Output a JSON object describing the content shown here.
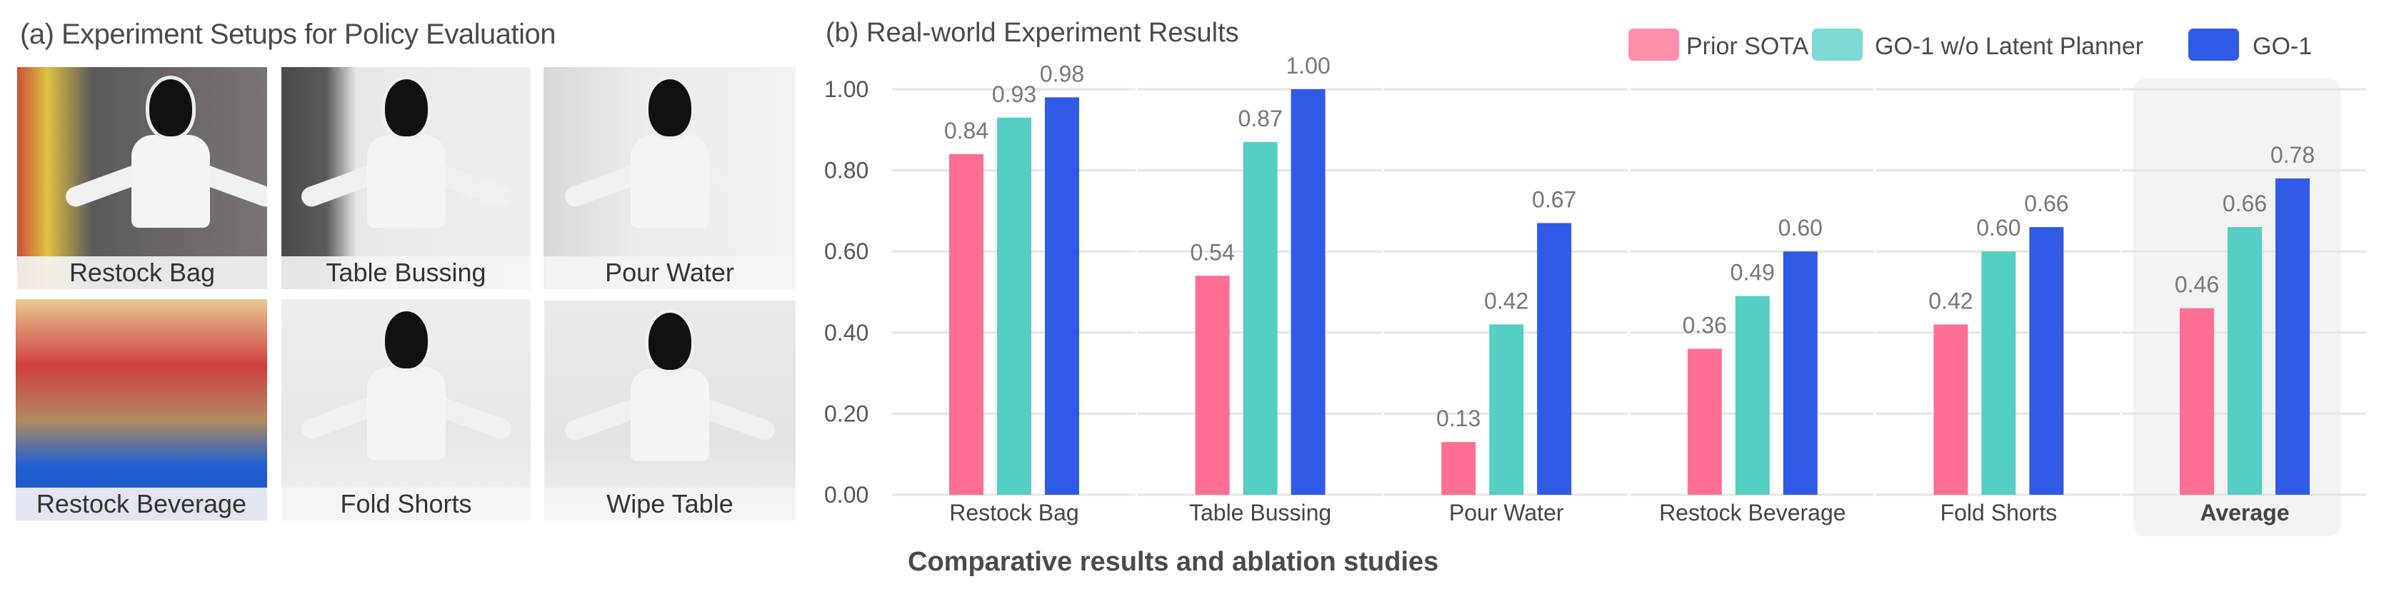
{
  "panel_a": {
    "title": "(a) Experiment Setups for Policy Evaluation",
    "photos": [
      {
        "label": "Restock Bag"
      },
      {
        "label": "Table Bussing"
      },
      {
        "label": "Pour Water"
      },
      {
        "label": "Restock Beverage"
      },
      {
        "label": "Fold Shorts"
      },
      {
        "label": "Wipe Table"
      }
    ]
  },
  "caption": "Comparative results and ablation studies",
  "chart_data": {
    "type": "bar",
    "title": "(b) Real-world Experiment Results",
    "categories": [
      "Restock Bag",
      "Table Bussing",
      "Pour Water",
      "Restock Beverage",
      "Fold Shorts",
      "Average"
    ],
    "highlighted_category": "Average",
    "series": [
      {
        "name": "Prior SOTA",
        "color": "#ff6f93",
        "legend_color": "#ff8fab",
        "values": [
          0.84,
          0.54,
          0.13,
          0.36,
          0.42,
          0.46
        ]
      },
      {
        "name": "GO-1 w/o Latent Planner",
        "color": "#55cec4",
        "legend_color": "#7dd9d3",
        "values": [
          0.93,
          0.87,
          0.42,
          0.49,
          0.6,
          0.66
        ]
      },
      {
        "name": "GO-1",
        "color": "#2f5be6",
        "legend_color": "#2f5be6",
        "values": [
          0.98,
          1.0,
          0.67,
          0.6,
          0.66,
          0.78
        ]
      }
    ],
    "yticks": [
      "0.00",
      "0.20",
      "0.40",
      "0.60",
      "0.80",
      "1.00"
    ],
    "ylim": [
      0,
      1
    ],
    "grid": true,
    "legend_position": "top-right"
  }
}
